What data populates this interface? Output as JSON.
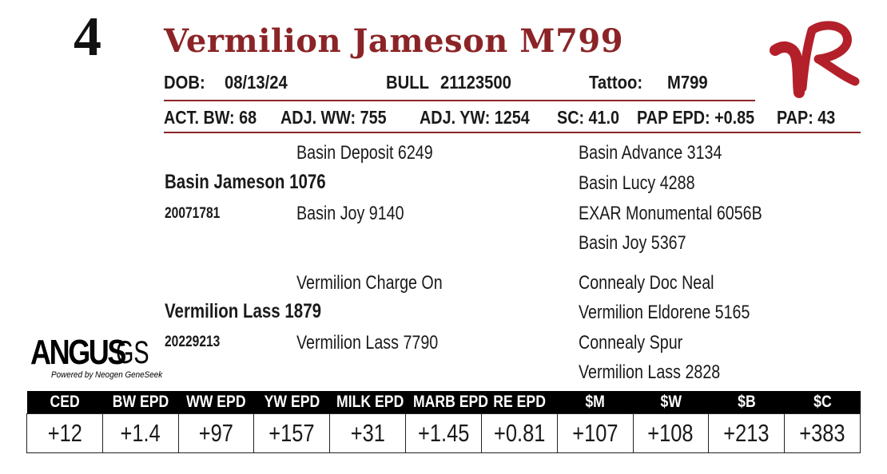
{
  "lot_number": "4",
  "animal_name": "Vermilion Jameson M799",
  "info_row": {
    "dob_label": "DOB:",
    "dob": "08/13/24",
    "sex": "BULL",
    "registration": "21123500",
    "tattoo_label": "Tattoo:",
    "tattoo": "M799"
  },
  "performance": [
    {
      "text": "ACT. BW: 68"
    },
    {
      "text": "ADJ. WW: 755"
    },
    {
      "text": "ADJ. YW: 1254"
    },
    {
      "text": "SC: 41.0"
    },
    {
      "text": "PAP EPD: +0.85"
    },
    {
      "text": "PAP: 43"
    }
  ],
  "pedigree": {
    "sire": {
      "name": "Basin Jameson 1076",
      "reg": "20071781",
      "sire": "Basin Deposit 6249",
      "dam": "Basin Joy 9140",
      "sire_sire": "Basin Advance 3134",
      "sire_dam": "Basin Lucy 4288",
      "dam_sire": "EXAR Monumental 6056B",
      "dam_dam": "Basin Joy 5367"
    },
    "dam": {
      "name": "Vermilion Lass 1879",
      "reg": "20229213",
      "sire": "Vermilion Charge On",
      "dam": "Vermilion Lass 7790",
      "sire_sire": "Connealy Doc Neal",
      "sire_dam": "Vermilion Eldorene 5165",
      "dam_sire": "Connealy Spur",
      "dam_dam": "Vermilion Lass 2828"
    }
  },
  "angus_logo": {
    "main": "ANGUS",
    "gs": "GS",
    "tagline": "Powered by Neogen GeneSeek"
  },
  "epd_table": {
    "headers": [
      "CED",
      "BW EPD",
      "WW EPD",
      "YW EPD",
      "MILK EPD",
      "MARB EPD",
      "RE EPD",
      "$M",
      "$W",
      "$B",
      "$C"
    ],
    "values": [
      "+12",
      "+1.4",
      "+97",
      "+157",
      "+31",
      "+1.45",
      "+0.81",
      "+107",
      "+108",
      "+213",
      "+383"
    ]
  },
  "colors": {
    "accent": "#8b2427",
    "header_bg": "#000000"
  }
}
